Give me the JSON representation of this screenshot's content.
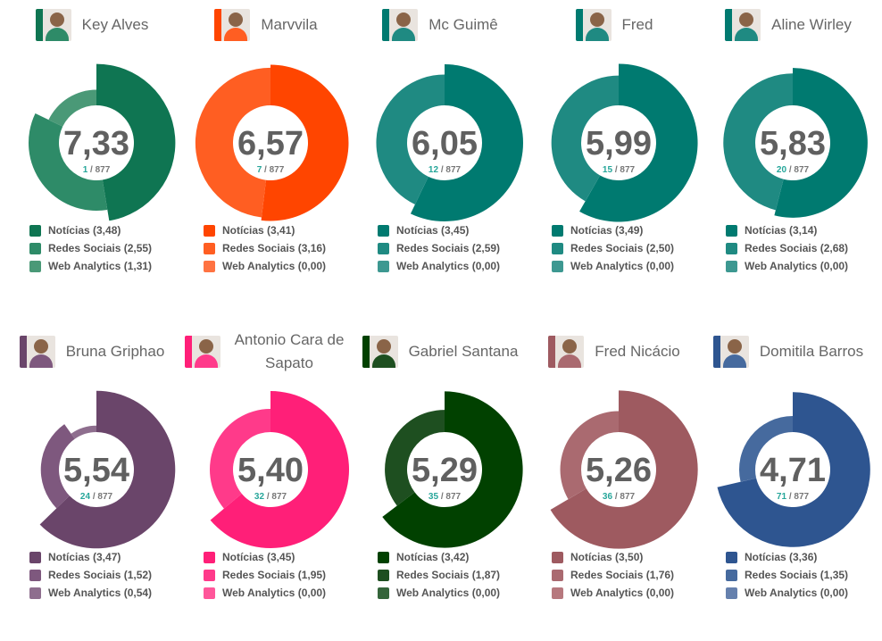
{
  "legend_labels": [
    "Notícias",
    "Redes Sociais",
    "Web Analytics"
  ],
  "chart_data": [
    {
      "type": "pie",
      "name": "Key Alves",
      "score": "7,33",
      "rank": "1",
      "total": "877",
      "colors": [
        "#0f7552",
        "#2e8b68",
        "#4a9977"
      ],
      "values": [
        3.48,
        2.55,
        1.31
      ],
      "value_labels": [
        "3,48",
        "2,55",
        "1,31"
      ]
    },
    {
      "type": "pie",
      "name": "Marvvila",
      "score": "6,57",
      "rank": "7",
      "total": "877",
      "colors": [
        "#ff4500",
        "#ff5e22",
        "#ff7342"
      ],
      "values": [
        3.41,
        3.16,
        0.0
      ],
      "value_labels": [
        "3,41",
        "3,16",
        "0,00"
      ]
    },
    {
      "type": "pie",
      "name": "Mc Guimê",
      "score": "6,05",
      "rank": "12",
      "total": "877",
      "colors": [
        "#007a70",
        "#1f8a82",
        "#3d9891"
      ],
      "values": [
        3.45,
        2.59,
        0.0
      ],
      "value_labels": [
        "3,45",
        "2,59",
        "0,00"
      ]
    },
    {
      "type": "pie",
      "name": "Fred",
      "score": "5,99",
      "rank": "15",
      "total": "877",
      "colors": [
        "#007a70",
        "#1f8a82",
        "#3d9891"
      ],
      "values": [
        3.49,
        2.5,
        0.0
      ],
      "value_labels": [
        "3,49",
        "2,50",
        "0,00"
      ]
    },
    {
      "type": "pie",
      "name": "Aline Wirley",
      "score": "5,83",
      "rank": "20",
      "total": "877",
      "colors": [
        "#007a70",
        "#1f8a82",
        "#3d9891"
      ],
      "values": [
        3.14,
        2.68,
        0.0
      ],
      "value_labels": [
        "3,14",
        "2,68",
        "0,00"
      ]
    },
    {
      "type": "pie",
      "name": "Bruna Griphao",
      "score": "5,54",
      "rank": "24",
      "total": "877",
      "colors": [
        "#6a456a",
        "#7e587e",
        "#8e6e8e"
      ],
      "values": [
        3.47,
        1.52,
        0.54
      ],
      "value_labels": [
        "3,47",
        "1,52",
        "0,54"
      ]
    },
    {
      "type": "pie",
      "name": "Antonio Cara de Sapato",
      "score": "5,40",
      "rank": "32",
      "total": "877",
      "colors": [
        "#ff1f78",
        "#ff3a8a",
        "#ff569a"
      ],
      "values": [
        3.45,
        1.95,
        0.0
      ],
      "value_labels": [
        "3,45",
        "1,95",
        "0,00"
      ]
    },
    {
      "type": "pie",
      "name": "Gabriel Santana",
      "score": "5,29",
      "rank": "35",
      "total": "877",
      "colors": [
        "#014100",
        "#1e4f20",
        "#34653a"
      ],
      "values": [
        3.42,
        1.87,
        0.0
      ],
      "value_labels": [
        "3,42",
        "1,87",
        "0,00"
      ]
    },
    {
      "type": "pie",
      "name": "Fred Nicácio",
      "score": "5,26",
      "rank": "36",
      "total": "877",
      "colors": [
        "#9e5a60",
        "#aa6a70",
        "#b7787e"
      ],
      "values": [
        3.5,
        1.76,
        0.0
      ],
      "value_labels": [
        "3,50",
        "1,76",
        "0,00"
      ]
    },
    {
      "type": "pie",
      "name": "Domitila Barros",
      "score": "4,71",
      "rank": "71",
      "total": "877",
      "colors": [
        "#2e5590",
        "#466a9e",
        "#6580ad"
      ],
      "values": [
        3.36,
        1.35,
        0.0
      ],
      "value_labels": [
        "3,36",
        "1,35",
        "0,00"
      ]
    }
  ]
}
